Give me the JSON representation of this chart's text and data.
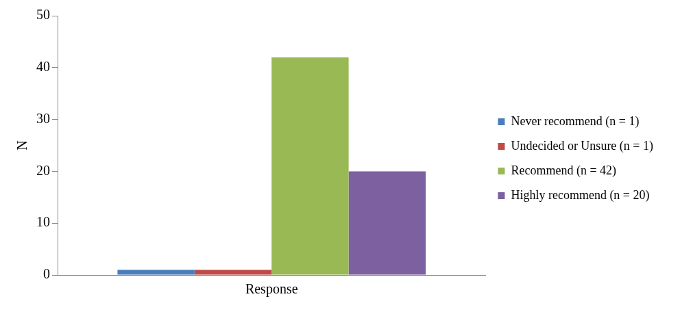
{
  "chart_data": {
    "type": "bar",
    "ylabel": "N",
    "categories": [
      "Response"
    ],
    "series": [
      {
        "name": "Never recommend (n = 1)",
        "color": "#4a7ebb",
        "values": [
          1
        ]
      },
      {
        "name": "Undecided or Unsure (n = 1)",
        "color": "#be4b48",
        "values": [
          1
        ]
      },
      {
        "name": "Recommend (n = 42)",
        "color": "#98b954",
        "values": [
          42
        ]
      },
      {
        "name": "Highly recommend (n = 20)",
        "color": "#7d60a0",
        "values": [
          20
        ]
      }
    ],
    "ylim": [
      0,
      50
    ],
    "yticks": [
      0,
      10,
      20,
      30,
      40,
      50
    ],
    "grid": false,
    "legend": "right"
  }
}
